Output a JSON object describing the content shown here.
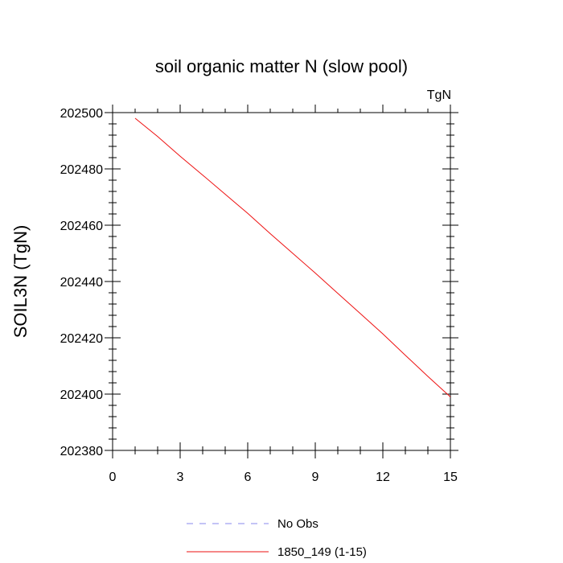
{
  "chart_data": {
    "type": "line",
    "title": "soil organic matter N (slow pool)",
    "units_label": "TgN",
    "xlabel": "",
    "ylabel": "SOIL3N  (TgN)",
    "xlim": [
      0,
      15
    ],
    "ylim": [
      202380,
      202500
    ],
    "x_ticks": [
      0,
      3,
      6,
      9,
      12,
      15
    ],
    "y_ticks": [
      202380,
      202400,
      202420,
      202440,
      202460,
      202480,
      202500
    ],
    "x_minor_step": 1,
    "y_minor_step": 4,
    "grid": false,
    "legend_position": "bottom-center",
    "series": [
      {
        "name": "No Obs",
        "color": "#8888ee",
        "dash": "dashed",
        "x": [],
        "y": []
      },
      {
        "name": "1850_149 (1-15)",
        "color": "#ee1111",
        "dash": "solid",
        "x": [
          1,
          2,
          3,
          4,
          5,
          6,
          7,
          8,
          9,
          10,
          11,
          12,
          13,
          14,
          15
        ],
        "y": [
          202498,
          202491.5,
          202484.5,
          202477.8,
          202471,
          202464.2,
          202457,
          202450,
          202443,
          202435.8,
          202428.6,
          202421.4,
          202413.8,
          202406.3,
          202399
        ]
      }
    ]
  }
}
